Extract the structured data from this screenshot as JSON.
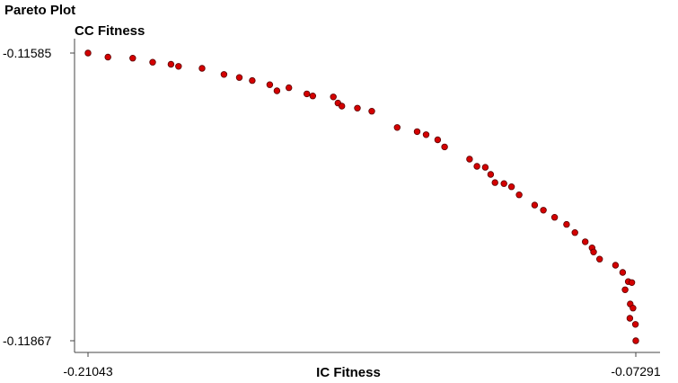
{
  "window_title": "Pareto Plot",
  "chart_data": {
    "type": "scatter",
    "xlabel": "IC Fitness",
    "ylabel": "CC Fitness",
    "xlim": [
      -0.21043,
      -0.07291
    ],
    "ylim": [
      -0.11867,
      -0.11585
    ],
    "x_ticks": [
      "-0.21043",
      "-0.07291"
    ],
    "y_ticks": [
      "-0.11585",
      "-0.11867"
    ],
    "grid": false,
    "point_color": "#d40000",
    "points": [
      [
        -0.21043,
        -0.11585
      ],
      [
        -0.20543,
        -0.11589
      ],
      [
        -0.1992,
        -0.1159
      ],
      [
        -0.1942,
        -0.11594
      ],
      [
        -0.1896,
        -0.11596
      ],
      [
        -0.1877,
        -0.11598
      ],
      [
        -0.1818,
        -0.116
      ],
      [
        -0.1763,
        -0.11606
      ],
      [
        -0.17245,
        -0.11609
      ],
      [
        -0.1692,
        -0.11612
      ],
      [
        -0.1648,
        -0.11616
      ],
      [
        -0.163,
        -0.11622
      ],
      [
        -0.16,
        -0.11619
      ],
      [
        -0.1555,
        -0.11625
      ],
      [
        -0.154,
        -0.11627
      ],
      [
        -0.14885,
        -0.11628
      ],
      [
        -0.1477,
        -0.11634
      ],
      [
        -0.1467,
        -0.11637
      ],
      [
        -0.1428,
        -0.11639
      ],
      [
        -0.1392,
        -0.11642
      ],
      [
        -0.1328,
        -0.11658
      ],
      [
        -0.1278,
        -0.11662
      ],
      [
        -0.12555,
        -0.11665
      ],
      [
        -0.12265,
        -0.1167
      ],
      [
        -0.1209,
        -0.11677
      ],
      [
        -0.11465,
        -0.11689
      ],
      [
        -0.1128,
        -0.11696
      ],
      [
        -0.1107,
        -0.11697
      ],
      [
        -0.10935,
        -0.11704
      ],
      [
        -0.10825,
        -0.11712
      ],
      [
        -0.106,
        -0.11713
      ],
      [
        -0.1041,
        -0.11716
      ],
      [
        -0.1022,
        -0.11724
      ],
      [
        -0.0983,
        -0.11734
      ],
      [
        -0.0961,
        -0.11739
      ],
      [
        -0.0933,
        -0.11746
      ],
      [
        -0.0903,
        -0.11753
      ],
      [
        -0.0882,
        -0.11761
      ],
      [
        -0.0856,
        -0.1177
      ],
      [
        -0.0839,
        -0.11776
      ],
      [
        -0.0835,
        -0.1178
      ],
      [
        -0.082,
        -0.11787
      ],
      [
        -0.078,
        -0.11793
      ],
      [
        -0.0762,
        -0.118
      ],
      [
        -0.0748,
        -0.11809
      ],
      [
        -0.0739,
        -0.1181
      ],
      [
        -0.0756,
        -0.11817
      ],
      [
        -0.0743,
        -0.11831
      ],
      [
        -0.0736,
        -0.11835
      ],
      [
        -0.0744,
        -0.11845
      ],
      [
        -0.073,
        -0.11851
      ],
      [
        -0.07291,
        -0.11867
      ]
    ]
  }
}
